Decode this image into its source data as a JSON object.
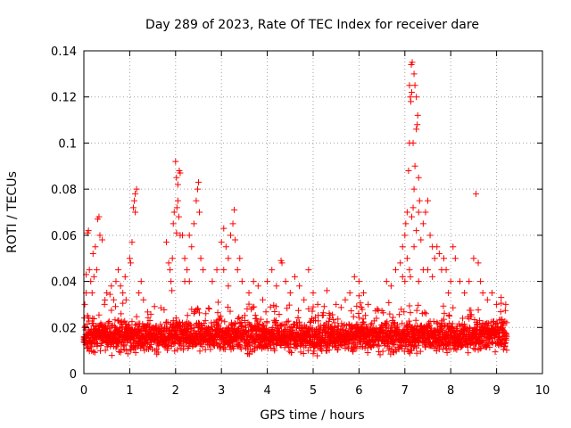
{
  "chart_data": {
    "type": "scatter",
    "title": "Day 289 of 2023, Rate Of TEC Index for receiver dare",
    "xlabel": "GPS time / hours",
    "ylabel": "ROTI / TECUs",
    "xlim": [
      0,
      10
    ],
    "ylim": [
      0,
      0.14
    ],
    "xticks": [
      "0",
      "1",
      "2",
      "3",
      "4",
      "5",
      "6",
      "7",
      "8",
      "9",
      "10"
    ],
    "yticks": [
      "0",
      "0.02",
      "0.04",
      "0.06",
      "0.08",
      "0.1",
      "0.12",
      "0.14"
    ],
    "grid": true,
    "marker": "plus",
    "color": "#ff0000",
    "series": [
      {
        "name": "ROTI",
        "points": [
          [
            0.05,
            0.043
          ],
          [
            0.08,
            0.061
          ],
          [
            0.1,
            0.062
          ],
          [
            0.2,
            0.052
          ],
          [
            0.25,
            0.055
          ],
          [
            0.3,
            0.067
          ],
          [
            0.33,
            0.068
          ],
          [
            0.35,
            0.06
          ],
          [
            0.4,
            0.058
          ],
          [
            0.02,
            0.03
          ],
          [
            0.05,
            0.035
          ],
          [
            0.08,
            0.025
          ],
          [
            0.12,
            0.045
          ],
          [
            0.15,
            0.04
          ],
          [
            0.18,
            0.035
          ],
          [
            0.22,
            0.042
          ],
          [
            0.28,
            0.045
          ],
          [
            0.45,
            0.03
          ],
          [
            0.5,
            0.035
          ],
          [
            0.6,
            0.038
          ],
          [
            0.65,
            0.032
          ],
          [
            0.7,
            0.04
          ],
          [
            0.75,
            0.045
          ],
          [
            0.8,
            0.038
          ],
          [
            0.85,
            0.035
          ],
          [
            0.9,
            0.042
          ],
          [
            1.0,
            0.05
          ],
          [
            1.02,
            0.048
          ],
          [
            1.05,
            0.057
          ],
          [
            1.08,
            0.072
          ],
          [
            1.1,
            0.075
          ],
          [
            1.12,
            0.078
          ],
          [
            1.15,
            0.08
          ],
          [
            1.12,
            0.07
          ],
          [
            1.2,
            0.035
          ],
          [
            1.25,
            0.04
          ],
          [
            1.3,
            0.032
          ],
          [
            1.8,
            0.057
          ],
          [
            1.85,
            0.048
          ],
          [
            1.88,
            0.045
          ],
          [
            1.9,
            0.04
          ],
          [
            1.93,
            0.05
          ],
          [
            1.95,
            0.065
          ],
          [
            1.97,
            0.07
          ],
          [
            2.0,
            0.092
          ],
          [
            2.02,
            0.085
          ],
          [
            2.05,
            0.082
          ],
          [
            2.08,
            0.088
          ],
          [
            2.1,
            0.087
          ],
          [
            2.05,
            0.075
          ],
          [
            2.03,
            0.072
          ],
          [
            2.07,
            0.068
          ],
          [
            2.02,
            0.061
          ],
          [
            2.1,
            0.06
          ],
          [
            2.15,
            0.06
          ],
          [
            2.2,
            0.05
          ],
          [
            2.25,
            0.045
          ],
          [
            2.3,
            0.06
          ],
          [
            2.35,
            0.055
          ],
          [
            2.4,
            0.065
          ],
          [
            2.45,
            0.075
          ],
          [
            2.48,
            0.08
          ],
          [
            2.5,
            0.083
          ],
          [
            2.52,
            0.07
          ],
          [
            2.55,
            0.05
          ],
          [
            2.6,
            0.045
          ],
          [
            2.2,
            0.04
          ],
          [
            2.3,
            0.04
          ],
          [
            1.92,
            0.036
          ],
          [
            2.8,
            0.04
          ],
          [
            2.9,
            0.045
          ],
          [
            3.0,
            0.057
          ],
          [
            3.05,
            0.063
          ],
          [
            3.1,
            0.055
          ],
          [
            3.15,
            0.05
          ],
          [
            3.2,
            0.06
          ],
          [
            3.25,
            0.065
          ],
          [
            3.28,
            0.071
          ],
          [
            3.3,
            0.058
          ],
          [
            3.35,
            0.045
          ],
          [
            3.4,
            0.05
          ],
          [
            3.45,
            0.04
          ],
          [
            3.05,
            0.045
          ],
          [
            3.15,
            0.038
          ],
          [
            3.6,
            0.035
          ],
          [
            3.7,
            0.04
          ],
          [
            3.8,
            0.038
          ],
          [
            3.9,
            0.032
          ],
          [
            4.0,
            0.04
          ],
          [
            4.1,
            0.045
          ],
          [
            4.2,
            0.038
          ],
          [
            4.3,
            0.049
          ],
          [
            4.32,
            0.048
          ],
          [
            4.4,
            0.04
          ],
          [
            4.5,
            0.035
          ],
          [
            4.6,
            0.042
          ],
          [
            4.7,
            0.038
          ],
          [
            4.8,
            0.032
          ],
          [
            4.9,
            0.045
          ],
          [
            5.0,
            0.035
          ],
          [
            5.1,
            0.03
          ],
          [
            5.3,
            0.036
          ],
          [
            5.5,
            0.03
          ],
          [
            5.7,
            0.032
          ],
          [
            5.8,
            0.035
          ],
          [
            5.9,
            0.042
          ],
          [
            6.0,
            0.04
          ],
          [
            6.1,
            0.035
          ],
          [
            6.2,
            0.03
          ],
          [
            6.4,
            0.028
          ],
          [
            6.6,
            0.04
          ],
          [
            6.7,
            0.038
          ],
          [
            6.8,
            0.045
          ],
          [
            6.9,
            0.048
          ],
          [
            6.95,
            0.055
          ],
          [
            7.0,
            0.06
          ],
          [
            7.02,
            0.065
          ],
          [
            7.05,
            0.07
          ],
          [
            7.08,
            0.088
          ],
          [
            7.1,
            0.1
          ],
          [
            7.12,
            0.12
          ],
          [
            7.14,
            0.134
          ],
          [
            7.16,
            0.135
          ],
          [
            7.15,
            0.122
          ],
          [
            7.13,
            0.118
          ],
          [
            7.1,
            0.125
          ],
          [
            7.2,
            0.13
          ],
          [
            7.22,
            0.125
          ],
          [
            7.25,
            0.12
          ],
          [
            7.18,
            0.1
          ],
          [
            7.2,
            0.08
          ],
          [
            7.22,
            0.09
          ],
          [
            7.25,
            0.106
          ],
          [
            7.27,
            0.108
          ],
          [
            7.28,
            0.112
          ],
          [
            7.3,
            0.085
          ],
          [
            7.32,
            0.075
          ],
          [
            7.3,
            0.07
          ],
          [
            7.4,
            0.065
          ],
          [
            7.45,
            0.07
          ],
          [
            7.5,
            0.075
          ],
          [
            7.55,
            0.06
          ],
          [
            7.6,
            0.055
          ],
          [
            7.65,
            0.05
          ],
          [
            7.7,
            0.055
          ],
          [
            7.75,
            0.052
          ],
          [
            7.8,
            0.045
          ],
          [
            7.85,
            0.05
          ],
          [
            7.9,
            0.045
          ],
          [
            7.95,
            0.035
          ],
          [
            8.0,
            0.04
          ],
          [
            8.05,
            0.055
          ],
          [
            8.1,
            0.05
          ],
          [
            8.2,
            0.04
          ],
          [
            8.3,
            0.035
          ],
          [
            8.4,
            0.04
          ],
          [
            8.5,
            0.05
          ],
          [
            8.55,
            0.078
          ],
          [
            8.6,
            0.048
          ],
          [
            8.65,
            0.04
          ],
          [
            8.7,
            0.035
          ],
          [
            8.8,
            0.032
          ],
          [
            8.9,
            0.035
          ],
          [
            9.0,
            0.03
          ],
          [
            9.1,
            0.033
          ],
          [
            9.2,
            0.03
          ],
          [
            7.05,
            0.05
          ],
          [
            7.1,
            0.045
          ],
          [
            7.12,
            0.042
          ],
          [
            7.2,
            0.055
          ],
          [
            7.25,
            0.062
          ],
          [
            7.35,
            0.058
          ],
          [
            7.4,
            0.045
          ],
          [
            7.15,
            0.068
          ],
          [
            7.18,
            0.072
          ],
          [
            7.0,
            0.04
          ],
          [
            6.95,
            0.042
          ],
          [
            7.3,
            0.04
          ],
          [
            7.5,
            0.045
          ],
          [
            7.6,
            0.042
          ]
        ],
        "baseline": {
          "x_start": 0.0,
          "x_end": 9.22,
          "x_step": 0.01,
          "center": 0.016,
          "spread": 0.009
        }
      }
    ]
  }
}
